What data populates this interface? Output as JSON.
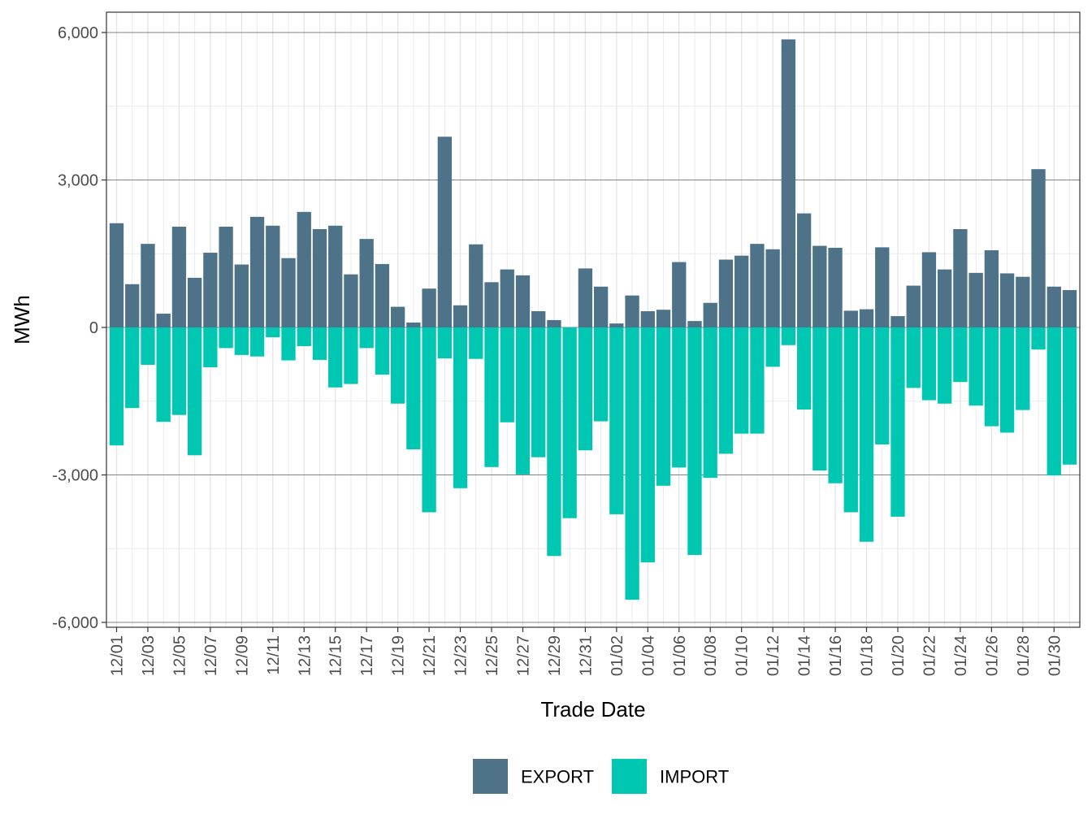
{
  "chart_data": {
    "type": "bar",
    "stacked": true,
    "xlabel": "Trade Date",
    "ylabel": "MWh",
    "ylim": [
      -6000,
      6000
    ],
    "yticks": [
      -6000,
      -3000,
      0,
      3000,
      6000
    ],
    "ytick_labels": [
      "-6,000",
      "-3,000",
      "0",
      "3,000",
      "6,000"
    ],
    "grid": true,
    "legend_position": "bottom",
    "categories": [
      "12/01",
      "12/02",
      "12/03",
      "12/04",
      "12/05",
      "12/06",
      "12/07",
      "12/08",
      "12/09",
      "12/10",
      "12/11",
      "12/12",
      "12/13",
      "12/14",
      "12/15",
      "12/16",
      "12/17",
      "12/18",
      "12/19",
      "12/20",
      "12/21",
      "12/22",
      "12/23",
      "12/24",
      "12/25",
      "12/26",
      "12/27",
      "12/28",
      "12/29",
      "12/30",
      "12/31",
      "01/01",
      "01/02",
      "01/03",
      "01/04",
      "01/05",
      "01/06",
      "01/07",
      "01/08",
      "01/09",
      "01/10",
      "01/11",
      "01/12",
      "01/13",
      "01/14",
      "01/15",
      "01/16",
      "01/17",
      "01/18",
      "01/19",
      "01/20",
      "01/21",
      "01/22",
      "01/23",
      "01/24",
      "01/25",
      "01/26",
      "01/27",
      "01/28",
      "01/29",
      "01/30",
      "01/31"
    ],
    "xtick_labels": [
      "12/01",
      "12/03",
      "12/05",
      "12/07",
      "12/09",
      "12/11",
      "12/13",
      "12/15",
      "12/17",
      "12/19",
      "12/21",
      "12/23",
      "12/25",
      "12/27",
      "12/29",
      "12/31",
      "01/02",
      "01/04",
      "01/06",
      "01/08",
      "01/10",
      "01/12",
      "01/14",
      "01/16",
      "01/18",
      "01/20",
      "01/22",
      "01/24",
      "01/26",
      "01/28",
      "01/30"
    ],
    "series": [
      {
        "name": "EXPORT",
        "color": "#4e7287",
        "values": [
          2120,
          880,
          1700,
          280,
          2050,
          1010,
          1520,
          2050,
          1280,
          2250,
          2070,
          1410,
          2350,
          2000,
          2070,
          1080,
          1800,
          1290,
          420,
          100,
          790,
          3880,
          450,
          1690,
          920,
          1180,
          1060,
          330,
          150,
          0,
          1200,
          830,
          80,
          650,
          330,
          360,
          1330,
          130,
          500,
          1380,
          1460,
          1700,
          1590,
          5860,
          2320,
          1660,
          1620,
          340,
          370,
          1630,
          230,
          850,
          1530,
          1180,
          2000,
          1110,
          1570,
          1100,
          1030,
          3220,
          830,
          760
        ]
      },
      {
        "name": "IMPORT",
        "color": "#00c7b1",
        "values": [
          -2400,
          -1640,
          -760,
          -1920,
          -1780,
          -2600,
          -810,
          -420,
          -560,
          -590,
          -200,
          -670,
          -380,
          -660,
          -1220,
          -1150,
          -420,
          -960,
          -1550,
          -2480,
          -3760,
          -630,
          -3270,
          -640,
          -2840,
          -1930,
          -2990,
          -2640,
          -4650,
          -3880,
          -2500,
          -1910,
          -3800,
          -5540,
          -4780,
          -3220,
          -2850,
          -4630,
          -3060,
          -2570,
          -2160,
          -2160,
          -800,
          -360,
          -1670,
          -2910,
          -3170,
          -3760,
          -4360,
          -2380,
          -3850,
          -1230,
          -1480,
          -1550,
          -1110,
          -1590,
          -2010,
          -2140,
          -1680,
          -450,
          -3010,
          -2790
        ]
      }
    ]
  }
}
